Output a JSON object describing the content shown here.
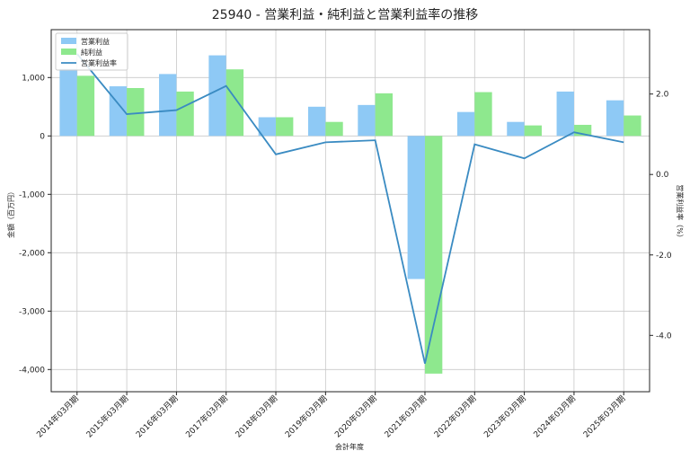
{
  "chart_data": {
    "type": "bar",
    "title": "25940 - 営業利益・純利益と営業利益率の推移",
    "xlabel": "会計年度",
    "ylabel": "金額（百万円）",
    "y2label": "営業利益率（%）",
    "categories": [
      "2014年03月期",
      "2015年03月期",
      "2016年03月期",
      "2017年03月期",
      "2018年03月期",
      "2019年03月期",
      "2020年03月期",
      "2021年03月期",
      "2022年03月期",
      "2023年03月期",
      "2024年03月期",
      "2025年03月期"
    ],
    "series": [
      {
        "name": "営業利益",
        "type": "bar",
        "axis": "left",
        "color": "#8ec9f5",
        "values": [
          1150,
          850,
          1060,
          1380,
          320,
          500,
          530,
          -2450,
          410,
          240,
          760,
          610
        ]
      },
      {
        "name": "純利益",
        "type": "bar",
        "axis": "left",
        "color": "#8ee88e",
        "values": [
          1030,
          820,
          760,
          1140,
          320,
          240,
          730,
          -4070,
          750,
          180,
          190,
          350
        ]
      },
      {
        "name": "営業利益率",
        "type": "line",
        "axis": "right",
        "color": "#3a8bc2",
        "values": [
          3.0,
          1.5,
          1.6,
          2.2,
          0.5,
          0.8,
          0.85,
          -4.7,
          0.75,
          0.4,
          1.05,
          0.8
        ]
      }
    ],
    "ylim": [
      -4380,
      1820
    ],
    "yticks": [
      -4000,
      -3000,
      -2000,
      -1000,
      0,
      1000
    ],
    "ytick_labels": [
      "-4,000",
      "-3,000",
      "-2,000",
      "-1,000",
      "0",
      "1,000"
    ],
    "y2lim": [
      -5.4,
      3.6
    ],
    "y2ticks": [
      -4.0,
      -2.0,
      0.0,
      2.0
    ],
    "y2tick_labels": [
      "-4.0",
      "-2.0",
      "0.0",
      "2.0"
    ],
    "grid": true,
    "legend": "top-left"
  }
}
